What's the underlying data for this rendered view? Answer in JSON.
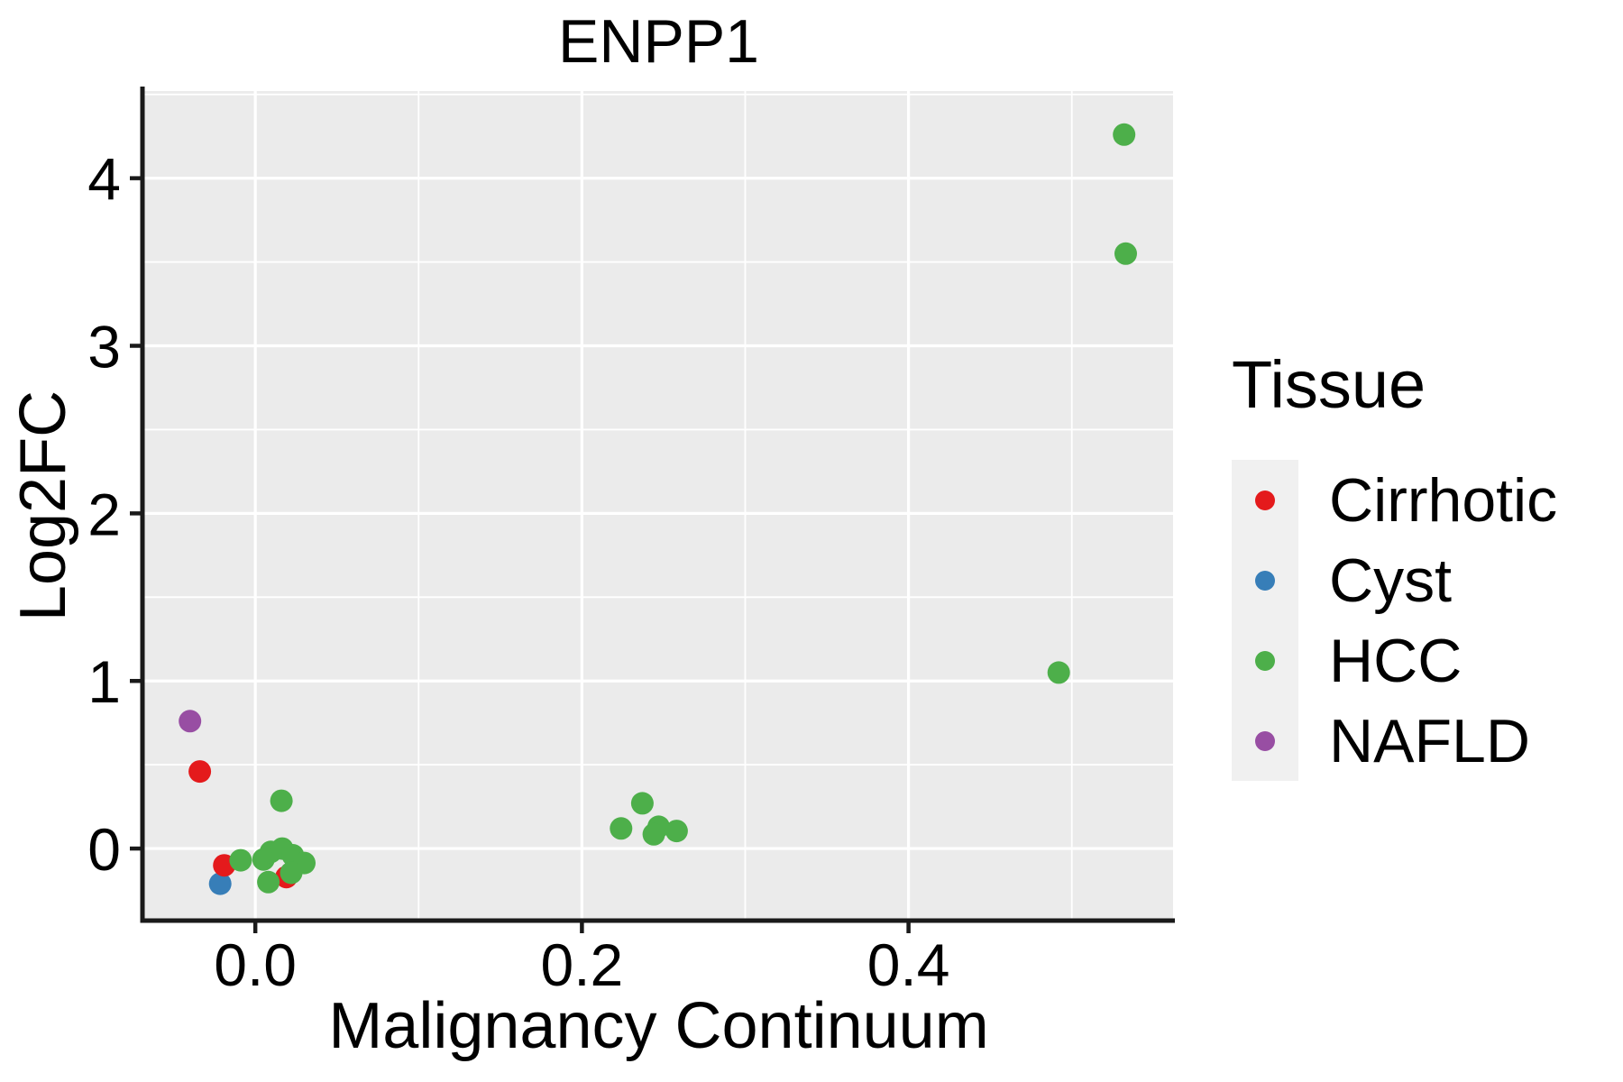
{
  "figure": {
    "background": "#ffffff"
  },
  "legend": {
    "title": "Tissue",
    "entries": [
      {
        "label": "Cirrhotic",
        "color": "#E41A1C"
      },
      {
        "label": "Cyst",
        "color": "#377EB8"
      },
      {
        "label": "HCC",
        "color": "#4DAF4A"
      },
      {
        "label": "NAFLD",
        "color": "#984EA3"
      }
    ]
  },
  "chart_data": {
    "type": "scatter",
    "title": "ENPP1",
    "xlabel": "Malignancy Continuum",
    "ylabel": "Log2FC",
    "xlim": [
      -0.068,
      0.562
    ],
    "ylim": [
      -0.43,
      4.52
    ],
    "grid": true,
    "panel_bg": "#EBEBEB",
    "grid_color": "#FFFFFF",
    "axis_color": "#1a1a1a",
    "legend_position": "right",
    "x_ticks": [
      {
        "value": 0.0,
        "label": "0.0"
      },
      {
        "value": 0.2,
        "label": "0.2"
      },
      {
        "value": 0.4,
        "label": "0.4"
      }
    ],
    "y_ticks": [
      {
        "value": 0,
        "label": "0"
      },
      {
        "value": 1,
        "label": "1"
      },
      {
        "value": 2,
        "label": "2"
      },
      {
        "value": 3,
        "label": "3"
      },
      {
        "value": 4,
        "label": "4"
      }
    ],
    "x_minor_ticks": [
      0.1,
      0.3,
      0.5
    ],
    "y_minor_ticks": [
      0.5,
      1.5,
      2.5,
      3.5,
      4.5
    ],
    "point_radius": 12.5,
    "draw_order": [
      "NAFLD",
      "Cyst",
      "Cirrhotic",
      "HCC"
    ],
    "series": [
      {
        "name": "Cirrhotic",
        "color": "#E41A1C",
        "points": [
          [
            -0.034,
            0.46
          ],
          [
            -0.019,
            -0.1
          ],
          [
            0.019,
            -0.17
          ]
        ]
      },
      {
        "name": "Cyst",
        "color": "#377EB8",
        "points": [
          [
            -0.0215,
            -0.21
          ]
        ]
      },
      {
        "name": "HCC",
        "color": "#4DAF4A",
        "points": [
          [
            0.016,
            0.285
          ],
          [
            -0.009,
            -0.07
          ],
          [
            0.005,
            -0.065
          ],
          [
            0.0095,
            -0.02
          ],
          [
            0.0165,
            0.0
          ],
          [
            0.023,
            -0.04
          ],
          [
            0.03,
            -0.086
          ],
          [
            0.008,
            -0.2
          ],
          [
            0.022,
            -0.145
          ],
          [
            0.237,
            0.27
          ],
          [
            0.224,
            0.12
          ],
          [
            0.247,
            0.13
          ],
          [
            0.258,
            0.105
          ],
          [
            0.244,
            0.085
          ],
          [
            0.492,
            1.05
          ],
          [
            0.532,
            4.26
          ],
          [
            0.533,
            3.55
          ]
        ]
      },
      {
        "name": "NAFLD",
        "color": "#984EA3",
        "points": [
          [
            -0.04,
            0.76
          ]
        ]
      }
    ]
  }
}
